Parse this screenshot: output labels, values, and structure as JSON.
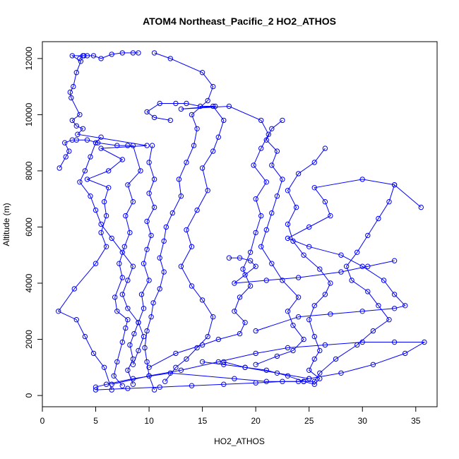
{
  "chart_data": {
    "type": "line",
    "title": "ATOM4 Northeast_Pacific_2 HO2_ATHOS",
    "xlabel": "HO2_ATHOS",
    "ylabel": "Altitude (m)",
    "xlim": [
      0,
      37
    ],
    "ylim": [
      -400,
      12600
    ],
    "xticks": [
      0,
      5,
      10,
      15,
      20,
      25,
      30,
      35
    ],
    "yticks": [
      0,
      2000,
      4000,
      6000,
      8000,
      10000,
      12000
    ],
    "grid": false,
    "legend": "none",
    "series_color": "#0000ff",
    "marker": "open-circle",
    "series": [
      {
        "points": [
          [
            6.5,
            200
          ],
          [
            5.8,
            1000
          ],
          [
            4.8,
            1500
          ],
          [
            4.0,
            2100
          ],
          [
            3.2,
            2700
          ],
          [
            1.5,
            3000
          ],
          [
            3.0,
            3800
          ],
          [
            5.0,
            4700
          ],
          [
            6.0,
            5300
          ],
          [
            5.5,
            5800
          ],
          [
            6.0,
            6400
          ],
          [
            5.8,
            6900
          ],
          [
            6.2,
            7400
          ],
          [
            4.2,
            7700
          ],
          [
            6.2,
            8000
          ],
          [
            7.5,
            8400
          ],
          [
            5.5,
            8800
          ],
          [
            9.8,
            8900
          ],
          [
            3.3,
            9300
          ],
          [
            3.8,
            9500
          ],
          [
            3.2,
            9600
          ],
          [
            2.8,
            9800
          ],
          [
            3.5,
            10000
          ],
          [
            2.7,
            10600
          ],
          [
            2.6,
            10800
          ],
          [
            2.9,
            11000
          ],
          [
            3.2,
            11500
          ],
          [
            3.6,
            11900
          ],
          [
            2.8,
            12100
          ],
          [
            3.9,
            12100
          ]
        ]
      },
      {
        "points": [
          [
            7.5,
            350
          ],
          [
            6.7,
            700
          ],
          [
            7.0,
            1200
          ],
          [
            7.5,
            1900
          ],
          [
            7.8,
            2400
          ],
          [
            8.0,
            2700
          ],
          [
            7.0,
            3000
          ],
          [
            6.8,
            3500
          ],
          [
            7.5,
            4200
          ],
          [
            7.2,
            4700
          ],
          [
            7.7,
            5300
          ],
          [
            8.2,
            5800
          ],
          [
            7.8,
            6400
          ],
          [
            8.5,
            6900
          ],
          [
            8.0,
            7500
          ],
          [
            9.2,
            8000
          ],
          [
            8.5,
            8900
          ],
          [
            8.0,
            8900
          ],
          [
            7.0,
            8900
          ],
          [
            5.2,
            9000
          ],
          [
            4.2,
            9100
          ],
          [
            3.2,
            9100
          ],
          [
            2.8,
            9100
          ],
          [
            2.1,
            9000
          ],
          [
            2.5,
            8700
          ],
          [
            2.2,
            8500
          ],
          [
            1.6,
            8100
          ]
        ]
      },
      {
        "points": [
          [
            8.5,
            400
          ],
          [
            8.0,
            900
          ],
          [
            8.5,
            1300
          ],
          [
            8.2,
            1800
          ],
          [
            8.6,
            2200
          ],
          [
            9.0,
            2600
          ],
          [
            9.5,
            3100
          ],
          [
            9.3,
            3600
          ],
          [
            10.0,
            4100
          ],
          [
            9.5,
            4700
          ],
          [
            9.8,
            5200
          ],
          [
            10.2,
            5700
          ],
          [
            9.8,
            6200
          ],
          [
            10.5,
            6700
          ],
          [
            10.0,
            7200
          ],
          [
            10.5,
            7700
          ],
          [
            10.0,
            8300
          ],
          [
            10.3,
            8900
          ]
        ]
      },
      {
        "points": [
          [
            10.5,
            200
          ],
          [
            10.0,
            700
          ],
          [
            9.8,
            1200
          ],
          [
            9.6,
            1700
          ],
          [
            9.8,
            2300
          ],
          [
            10.2,
            2800
          ],
          [
            10.4,
            3300
          ],
          [
            11.0,
            3800
          ],
          [
            11.4,
            4400
          ],
          [
            11.0,
            4900
          ],
          [
            11.4,
            5500
          ],
          [
            11.6,
            6000
          ],
          [
            12.2,
            6500
          ],
          [
            13.0,
            7100
          ],
          [
            12.8,
            7700
          ],
          [
            13.5,
            8300
          ],
          [
            14.2,
            8900
          ],
          [
            14.5,
            9500
          ],
          [
            14.0,
            10000
          ],
          [
            15.5,
            10500
          ],
          [
            16.0,
            11000
          ],
          [
            15.0,
            11500
          ],
          [
            12.0,
            12000
          ],
          [
            10.5,
            12200
          ]
        ]
      },
      {
        "points": [
          [
            11.5,
            500
          ],
          [
            12.5,
            1000
          ],
          [
            13.5,
            1300
          ],
          [
            14.5,
            1700
          ],
          [
            15.5,
            2100
          ],
          [
            16.0,
            2800
          ],
          [
            15.0,
            3400
          ],
          [
            14.0,
            3900
          ],
          [
            13.0,
            4600
          ],
          [
            14.0,
            5300
          ],
          [
            13.5,
            5900
          ],
          [
            14.5,
            6600
          ],
          [
            15.5,
            7300
          ],
          [
            15.0,
            8100
          ],
          [
            16.0,
            8700
          ],
          [
            16.5,
            9200
          ],
          [
            17.0,
            9800
          ],
          [
            16.0,
            10300
          ],
          [
            14.8,
            10300
          ],
          [
            13.5,
            10400
          ],
          [
            12.5,
            10400
          ],
          [
            11.0,
            10400
          ],
          [
            9.8,
            10100
          ],
          [
            10.5,
            9900
          ],
          [
            12.0,
            9800
          ]
        ]
      },
      {
        "points": [
          [
            10.0,
            1000
          ],
          [
            12.5,
            1500
          ],
          [
            15.0,
            1800
          ],
          [
            16.5,
            2000
          ],
          [
            18.5,
            2200
          ],
          [
            19.0,
            2600
          ],
          [
            18.0,
            3000
          ],
          [
            18.5,
            3500
          ],
          [
            19.5,
            3900
          ],
          [
            18.8,
            4500
          ],
          [
            19.5,
            5100
          ],
          [
            20.0,
            5800
          ],
          [
            20.5,
            6400
          ],
          [
            20.0,
            7000
          ],
          [
            21.0,
            7600
          ],
          [
            19.8,
            8200
          ],
          [
            20.5,
            8800
          ],
          [
            21.2,
            9300
          ],
          [
            20.5,
            9800
          ],
          [
            17.5,
            10300
          ],
          [
            13.0,
            10200
          ],
          [
            16.2,
            10300
          ]
        ]
      },
      {
        "points": [
          [
            20.0,
            1100
          ],
          [
            22.0,
            1400
          ],
          [
            23.5,
            1600
          ],
          [
            24.5,
            2000
          ],
          [
            23.5,
            2500
          ],
          [
            23.0,
            3000
          ],
          [
            24.0,
            3500
          ],
          [
            22.5,
            4100
          ],
          [
            21.5,
            4700
          ],
          [
            20.5,
            5300
          ],
          [
            21.0,
            5900
          ],
          [
            21.5,
            6500
          ],
          [
            22.0,
            7100
          ],
          [
            22.5,
            7700
          ],
          [
            21.5,
            8200
          ],
          [
            22.0,
            8700
          ],
          [
            21.0,
            9100
          ],
          [
            21.5,
            9500
          ],
          [
            22.5,
            9800
          ]
        ]
      },
      {
        "points": [
          [
            15.0,
            1200
          ],
          [
            17.0,
            1100
          ],
          [
            19.0,
            1000
          ],
          [
            21.0,
            900
          ],
          [
            23.0,
            700
          ],
          [
            24.5,
            500
          ],
          [
            25.5,
            400
          ],
          [
            26.0,
            600
          ],
          [
            25.0,
            900
          ],
          [
            25.5,
            1300
          ],
          [
            26.0,
            1600
          ],
          [
            25.5,
            2100
          ],
          [
            25.0,
            2700
          ],
          [
            25.5,
            3200
          ],
          [
            26.5,
            3600
          ],
          [
            27.0,
            4000
          ],
          [
            26.0,
            4500
          ],
          [
            24.5,
            5000
          ],
          [
            23.5,
            5500
          ],
          [
            23.0,
            6100
          ],
          [
            23.8,
            6700
          ],
          [
            23.0,
            7300
          ],
          [
            24.0,
            7900
          ],
          [
            25.5,
            8300
          ],
          [
            26.5,
            8800
          ]
        ]
      },
      {
        "points": [
          [
            5.0,
            200
          ],
          [
            8.0,
            250
          ],
          [
            11.0,
            300
          ],
          [
            14.0,
            350
          ],
          [
            17.0,
            400
          ],
          [
            20.0,
            450
          ],
          [
            22.5,
            500
          ],
          [
            24.5,
            500
          ],
          [
            25.5,
            500
          ],
          [
            26.0,
            800
          ],
          [
            27.5,
            1300
          ],
          [
            29.5,
            1800
          ],
          [
            31.0,
            2300
          ],
          [
            32.5,
            2700
          ],
          [
            31.5,
            3200
          ],
          [
            30.5,
            3700
          ],
          [
            29.0,
            4100
          ],
          [
            28.5,
            4600
          ],
          [
            29.5,
            5100
          ],
          [
            30.5,
            5700
          ],
          [
            31.5,
            6300
          ],
          [
            32.5,
            6900
          ],
          [
            33.0,
            7500
          ],
          [
            35.5,
            6700
          ]
        ]
      },
      {
        "points": [
          [
            20.0,
            2300
          ],
          [
            24.0,
            2800
          ],
          [
            27.0,
            2900
          ],
          [
            30.0,
            3000
          ],
          [
            33.0,
            3100
          ],
          [
            34.0,
            3200
          ],
          [
            33.0,
            3600
          ],
          [
            32.0,
            4100
          ],
          [
            30.0,
            4600
          ],
          [
            28.0,
            5000
          ],
          [
            25.0,
            5300
          ],
          [
            23.0,
            5600
          ],
          [
            25.0,
            6000
          ],
          [
            27.0,
            6400
          ],
          [
            26.5,
            6900
          ],
          [
            25.5,
            7400
          ],
          [
            30.0,
            7700
          ],
          [
            33.0,
            7500
          ]
        ]
      },
      {
        "points": [
          [
            6.5,
            400
          ],
          [
            10.0,
            700
          ],
          [
            13.0,
            900
          ],
          [
            16.5,
            1200
          ],
          [
            20.0,
            1500
          ],
          [
            23.0,
            1700
          ],
          [
            26.5,
            1800
          ],
          [
            30.0,
            1900
          ],
          [
            33.0,
            1900
          ],
          [
            35.8,
            1900
          ],
          [
            34.0,
            1500
          ],
          [
            31.0,
            1100
          ],
          [
            28.0,
            800
          ],
          [
            25.0,
            600
          ]
        ]
      },
      {
        "points": [
          [
            5.0,
            300
          ],
          [
            6.0,
            400
          ],
          [
            8.5,
            600
          ],
          [
            12.0,
            800
          ],
          [
            18.0,
            600
          ],
          [
            21.0,
            500
          ],
          [
            24.0,
            500
          ],
          [
            25.0,
            600
          ],
          [
            22.0,
            800
          ],
          [
            19.0,
            1000
          ],
          [
            17.0,
            1200
          ]
        ]
      },
      {
        "points": [
          [
            17.5,
            4900
          ],
          [
            18.5,
            4900
          ],
          [
            19.5,
            4800
          ],
          [
            20.0,
            4600
          ],
          [
            19.0,
            4300
          ],
          [
            18.0,
            4000
          ],
          [
            21.0,
            4100
          ],
          [
            24.0,
            4200
          ],
          [
            28.0,
            4400
          ],
          [
            30.5,
            4600
          ],
          [
            33.0,
            4800
          ]
        ]
      },
      {
        "points": [
          [
            9.0,
            12200
          ],
          [
            8.5,
            12200
          ],
          [
            7.5,
            12200
          ],
          [
            6.5,
            12150
          ],
          [
            5.5,
            12000
          ],
          [
            4.8,
            12100
          ],
          [
            4.2,
            12100
          ],
          [
            3.8,
            12100
          ],
          [
            3.5,
            12000
          ]
        ]
      },
      {
        "points": [
          [
            5.5,
            9200
          ],
          [
            5.0,
            9000
          ],
          [
            4.5,
            8500
          ],
          [
            4.0,
            8000
          ],
          [
            3.5,
            7600
          ],
          [
            4.5,
            7100
          ],
          [
            5.0,
            6600
          ],
          [
            5.5,
            6100
          ],
          [
            6.5,
            5600
          ],
          [
            7.5,
            5100
          ],
          [
            8.5,
            4600
          ],
          [
            8.0,
            4100
          ],
          [
            7.5,
            3600
          ],
          [
            8.0,
            3100
          ],
          [
            9.0,
            2600
          ],
          [
            9.5,
            2100
          ],
          [
            9.0,
            1600
          ],
          [
            8.5,
            1100
          ]
        ]
      }
    ]
  }
}
